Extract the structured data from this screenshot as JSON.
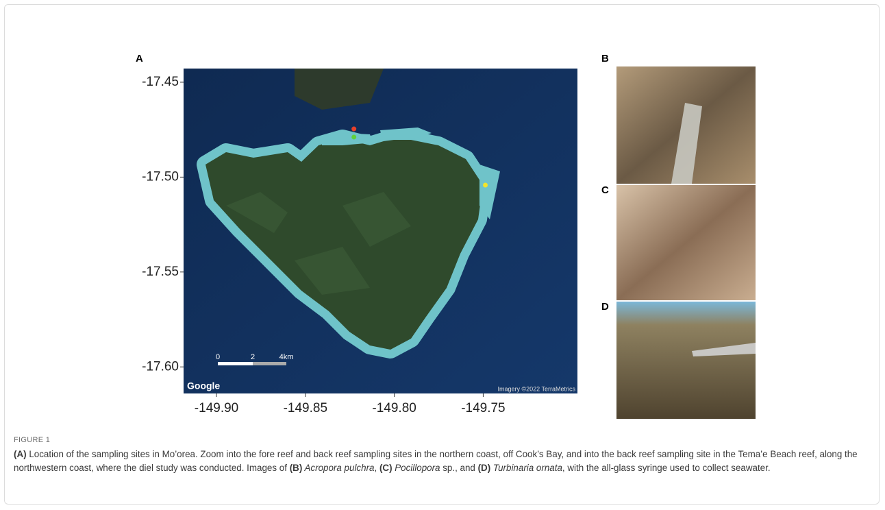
{
  "figure": {
    "map": {
      "panel_label": "A",
      "xlim": [
        -149.9185,
        -149.697
      ],
      "ylim": [
        -17.614,
        -17.4428
      ],
      "xticks": [
        {
          "value": -149.9,
          "label": "-149.90"
        },
        -149.85,
        {
          "value": -149.8,
          "label": "-149.80"
        },
        -149.75
      ],
      "yticks": [
        -17.45,
        {
          "value": -17.5,
          "label": "-17.50"
        },
        -17.55,
        {
          "value": -17.6,
          "label": "-17.60"
        }
      ],
      "sites": [
        {
          "lon": -149.8227,
          "lat": -17.4746,
          "color": "#e8402a"
        },
        {
          "lon": -149.8227,
          "lat": -17.4789,
          "color": "#5fd13b"
        },
        {
          "lon": -149.7488,
          "lat": -17.5042,
          "color": "#f2e52b"
        }
      ],
      "scale_labels": [
        "0",
        "2",
        "4km"
      ],
      "logo": "Google",
      "attribution": "Imagery ©2022 TerraMetrics"
    },
    "photos": [
      {
        "panel_label": "B"
      },
      {
        "panel_label": "C"
      },
      {
        "panel_label": "D"
      }
    ],
    "figure_label": "FIGURE 1",
    "caption": [
      {
        "text": "(A)",
        "style": "bold"
      },
      {
        "text": " Location of the sampling sites in Mo’orea. Zoom into the fore reef and back reef sampling sites in the northern coast, off Cook’s Bay, and into the back reef sampling site in the Tema’e Beach reef, along the northwestern coast, where the diel study was conducted. Images of ",
        "style": "normal"
      },
      {
        "text": "(B)",
        "style": "bold"
      },
      {
        "text": " Acropora pulchra",
        "style": "italic"
      },
      {
        "text": ", ",
        "style": "normal"
      },
      {
        "text": "(C)",
        "style": "bold"
      },
      {
        "text": " Pocillopora",
        "style": "italic"
      },
      {
        "text": " sp., and ",
        "style": "normal"
      },
      {
        "text": "(D)",
        "style": "bold"
      },
      {
        "text": " Turbinaria ornata",
        "style": "italic"
      },
      {
        "text": ", with the all-glass syringe used to collect seawater.",
        "style": "normal"
      }
    ]
  }
}
